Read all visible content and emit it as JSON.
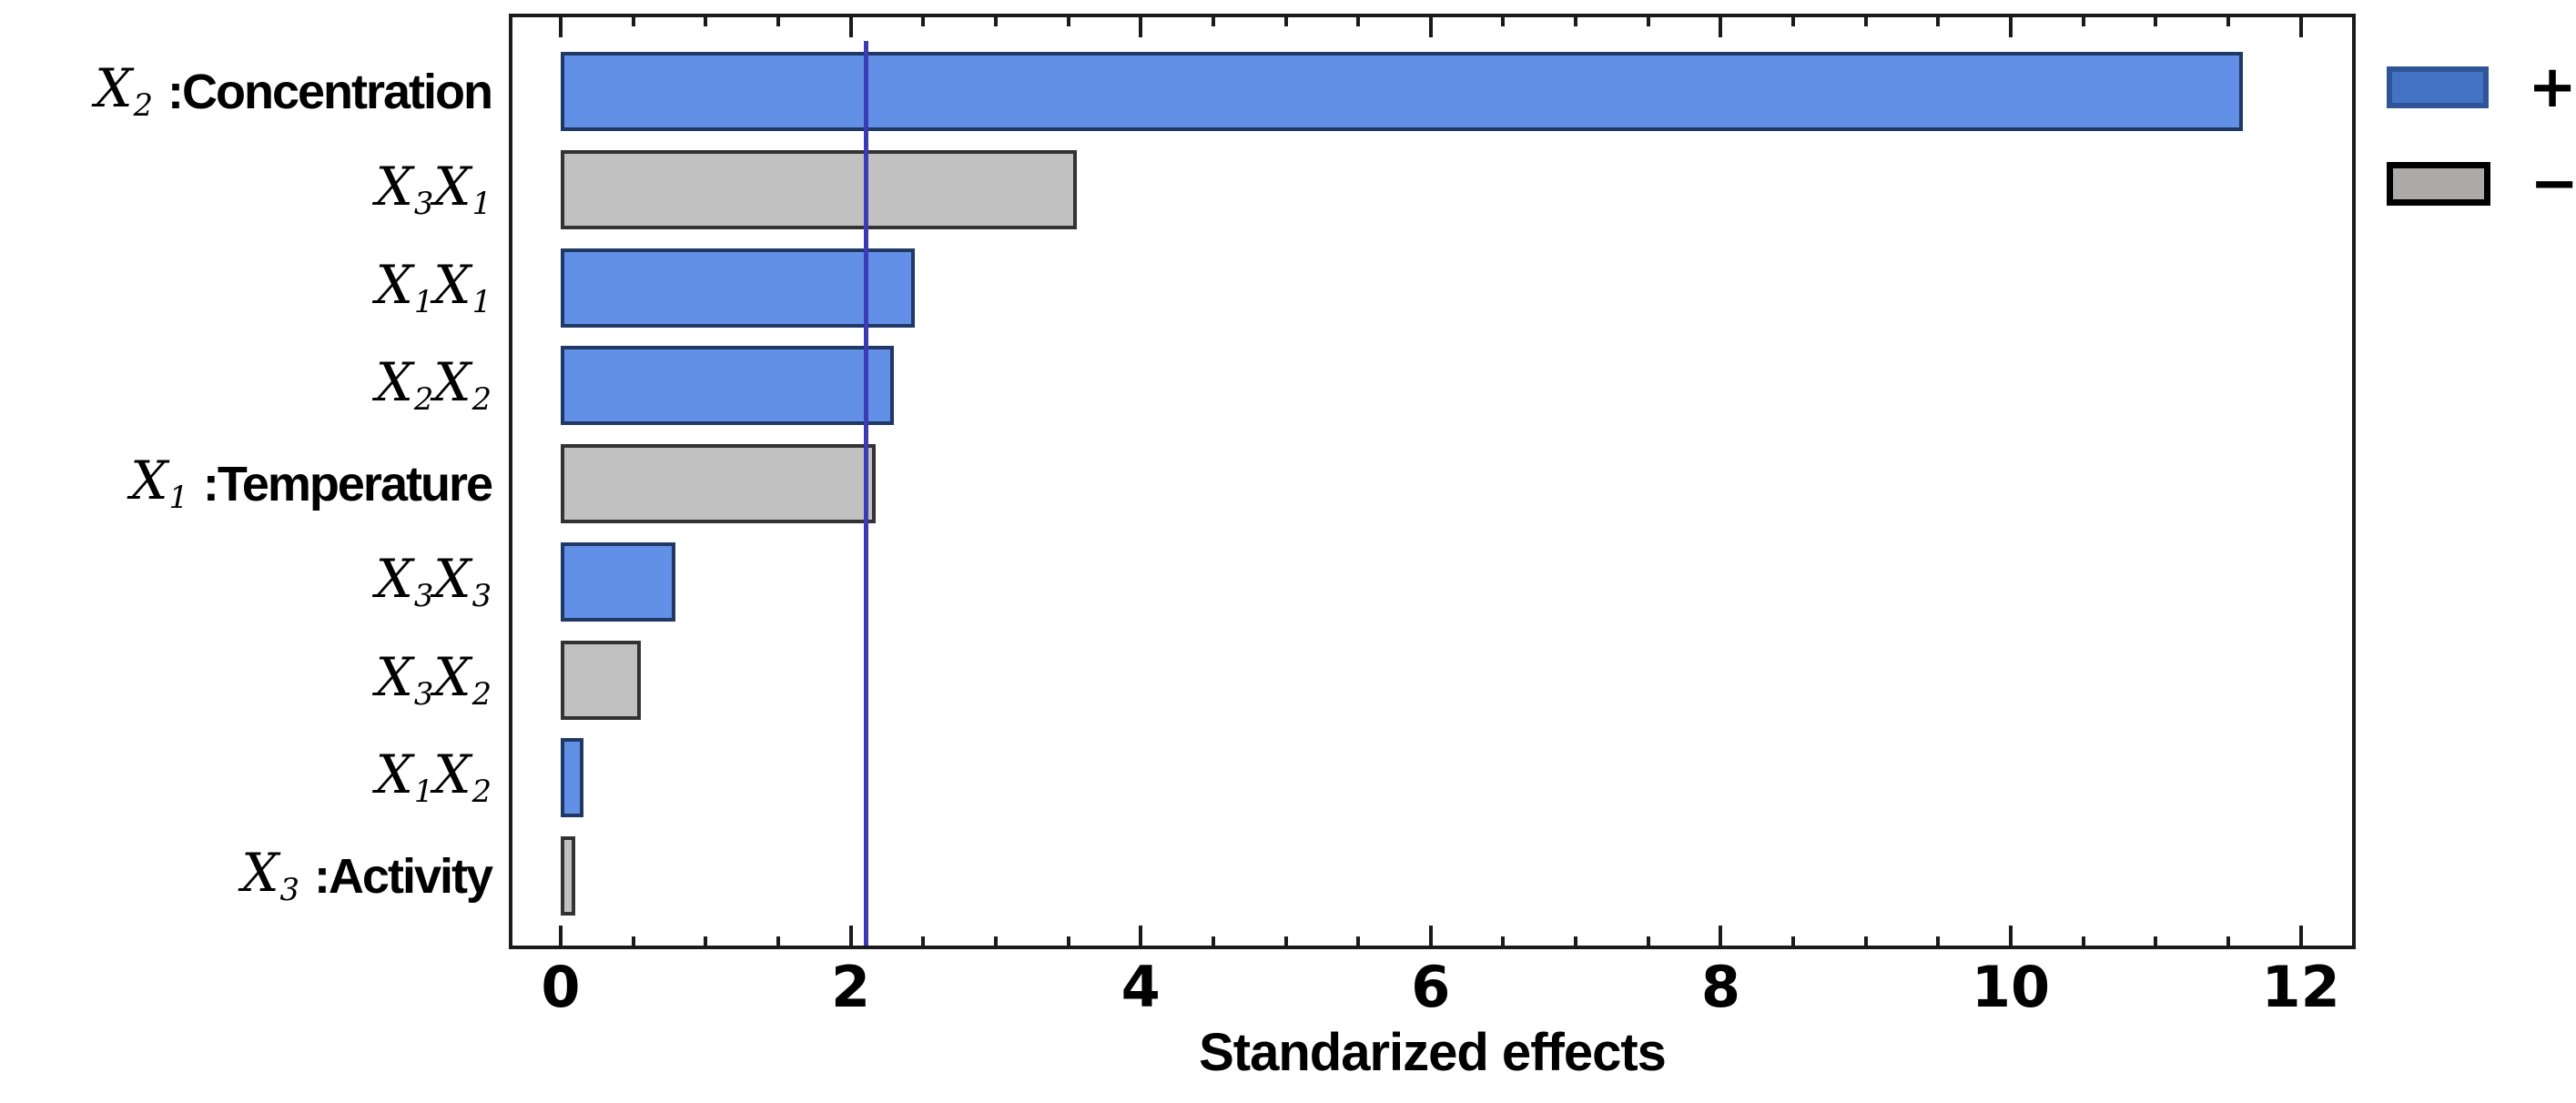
{
  "figure": {
    "background": "#ffffff",
    "colors": {
      "positive_fill": "#6190E6",
      "positive_border": "#1F3864",
      "negative_fill": "#C2C1C1",
      "negative_border": "#333333",
      "legend_positive_fill": "#4472C4",
      "legend_positive_border": "#2F5597",
      "legend_negative_fill": "#ACA9A9",
      "legend_negative_border": "#000000",
      "reference_line": "#3B3BB4",
      "plot_border": "#1A1A1A",
      "text": "#000000"
    }
  },
  "chart_data": {
    "type": "bar",
    "orientation": "horizontal",
    "title": "",
    "xlabel": "Standarized effects",
    "ylabel": "",
    "xlim": [
      0,
      12.38
    ],
    "xticks_major": [
      0,
      2,
      4,
      6,
      8,
      10,
      12
    ],
    "xtick_minor_step": 0.5,
    "xtick_minor_max": 12,
    "grid": false,
    "reference_line_x": 2.1,
    "legend_position": "top-right-outside",
    "categories": [
      {
        "terms": [
          {
            "base": "X",
            "sub": "2"
          }
        ],
        "name": ":Concentration"
      },
      {
        "terms": [
          {
            "base": "X",
            "sub": "3"
          },
          {
            "base": "X",
            "sub": "1"
          }
        ],
        "name": ""
      },
      {
        "terms": [
          {
            "base": "X",
            "sub": "1"
          },
          {
            "base": "X",
            "sub": "1"
          }
        ],
        "name": ""
      },
      {
        "terms": [
          {
            "base": "X",
            "sub": "2"
          },
          {
            "base": "X",
            "sub": "2"
          }
        ],
        "name": ""
      },
      {
        "terms": [
          {
            "base": "X",
            "sub": "1"
          }
        ],
        "name": ":Temperature"
      },
      {
        "terms": [
          {
            "base": "X",
            "sub": "3"
          },
          {
            "base": "X",
            "sub": "3"
          }
        ],
        "name": ""
      },
      {
        "terms": [
          {
            "base": "X",
            "sub": "3"
          },
          {
            "base": "X",
            "sub": "2"
          }
        ],
        "name": ""
      },
      {
        "terms": [
          {
            "base": "X",
            "sub": "1"
          },
          {
            "base": "X",
            "sub": "2"
          }
        ],
        "name": ""
      },
      {
        "terms": [
          {
            "base": "X",
            "sub": "3"
          }
        ],
        "name": ":Activity"
      }
    ],
    "values": [
      11.6,
      3.56,
      2.44,
      2.3,
      2.17,
      0.79,
      0.55,
      0.16,
      0.1
    ],
    "signs": [
      "+",
      "-",
      "+",
      "+",
      "-",
      "+",
      "-",
      "+",
      "-"
    ],
    "legend": [
      {
        "symbol": "+"
      },
      {
        "symbol": "−"
      }
    ]
  }
}
